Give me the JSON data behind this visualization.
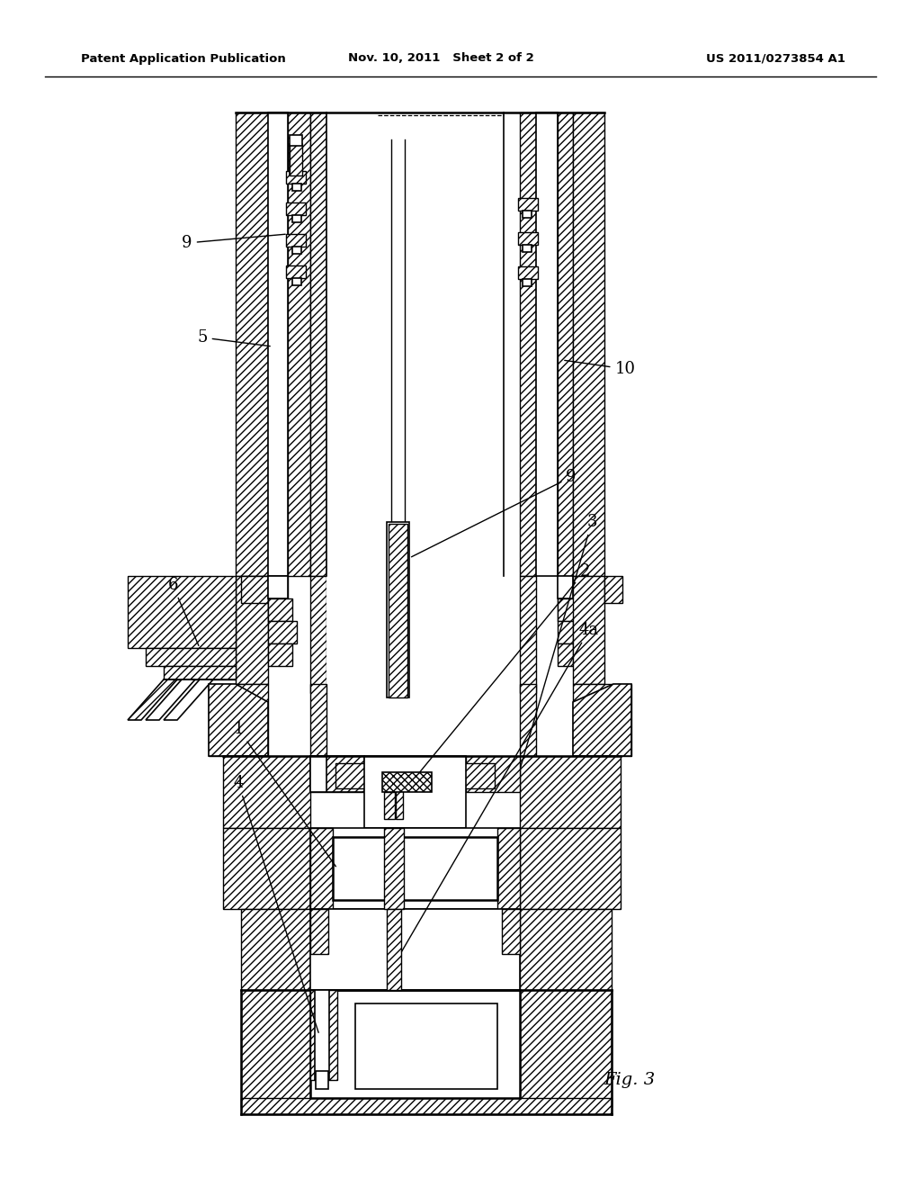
{
  "title_left": "Patent Application Publication",
  "title_center": "Nov. 10, 2011   Sheet 2 of 2",
  "title_right": "US 2011/0273854 A1",
  "fig_label": "Fig. 3",
  "background_color": "#ffffff",
  "header_fontsize": 9.5,
  "label_fontsize": 13,
  "fig_label_fontsize": 14,
  "lw": 1.2,
  "lw_thick": 1.8,
  "hatch": "////",
  "hatch_dense": "////"
}
